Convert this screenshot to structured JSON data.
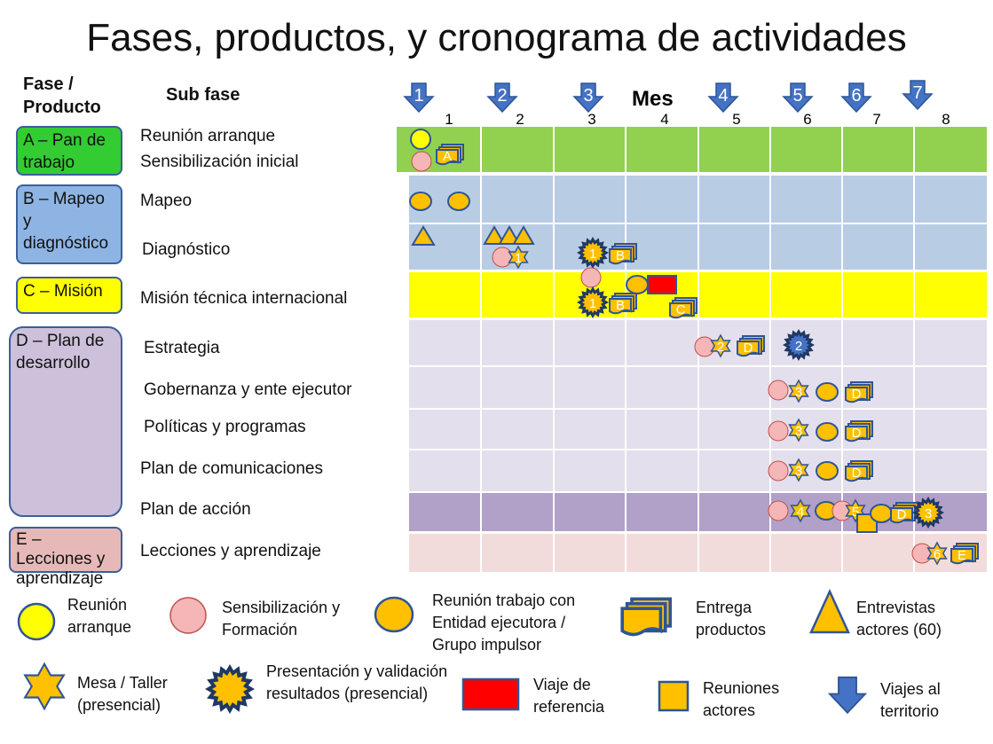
{
  "title": "Fases, productos, y cronograma de actividades",
  "headers": {
    "phase": "Fase / Producto",
    "subphase": "Sub fase",
    "month": "Mes"
  },
  "months": [
    "1",
    "2",
    "3",
    "4",
    "5",
    "6",
    "7",
    "8"
  ],
  "trips": [
    "1",
    "2",
    "3",
    "4",
    "5",
    "6",
    "7"
  ],
  "colors": {
    "green": "#92d050",
    "blue": "#b8cce4",
    "yellow": "#ffff00",
    "lavender": "#e4dfec",
    "purple": "#b1a0c7",
    "pink": "#f2dcdb",
    "orange": "#ffc000",
    "icon_blue": "#4472c4",
    "red": "#ff0000"
  },
  "phases": [
    {
      "label": "A – Pan de trabajo"
    },
    {
      "label": "B – Mapeo y diagnóstico"
    },
    {
      "label": "C – Misión"
    },
    {
      "label": "D – Plan de desarrollo"
    },
    {
      "label": "E – Lecciones y aprendizaje"
    }
  ],
  "subphases": [
    {
      "label": "Reunión arranque"
    },
    {
      "label": "Sensibilización inicial"
    },
    {
      "label": "Mapeo"
    },
    {
      "label": "Diagnóstico"
    },
    {
      "label": "Misión técnica internacional"
    },
    {
      "label": "Estrategia"
    },
    {
      "label": "Gobernanza y ente ejecutor"
    },
    {
      "label": "Políticas y programas"
    },
    {
      "label": "Plan de comunicaciones"
    },
    {
      "label": "Plan de acción"
    },
    {
      "label": "Lecciones y aprendizaje"
    }
  ],
  "markers": {
    "A": "A",
    "B": "B",
    "C": "C",
    "D": "D",
    "E": "E",
    "n1": "1",
    "n2": "2",
    "n3": "3",
    "n4": "4",
    "n5": "5",
    "n6": "6"
  },
  "legend": {
    "arranque": "Reunión arranque",
    "sensibilizacion": "Sensibilización y Formación",
    "trabajo": "Reunión trabajo con Entidad ejecutora / Grupo impulsor",
    "entrega": "Entrega productos",
    "entrevistas": "Entrevistas actores (60)",
    "mesa": "Mesa / Taller (presencial)",
    "presentacion": "Presentación y validación resultados (presencial)",
    "viaje_ref": "Viaje de referencia",
    "reuniones": "Reuniones actores",
    "viajes": "Viajes al territorio"
  }
}
